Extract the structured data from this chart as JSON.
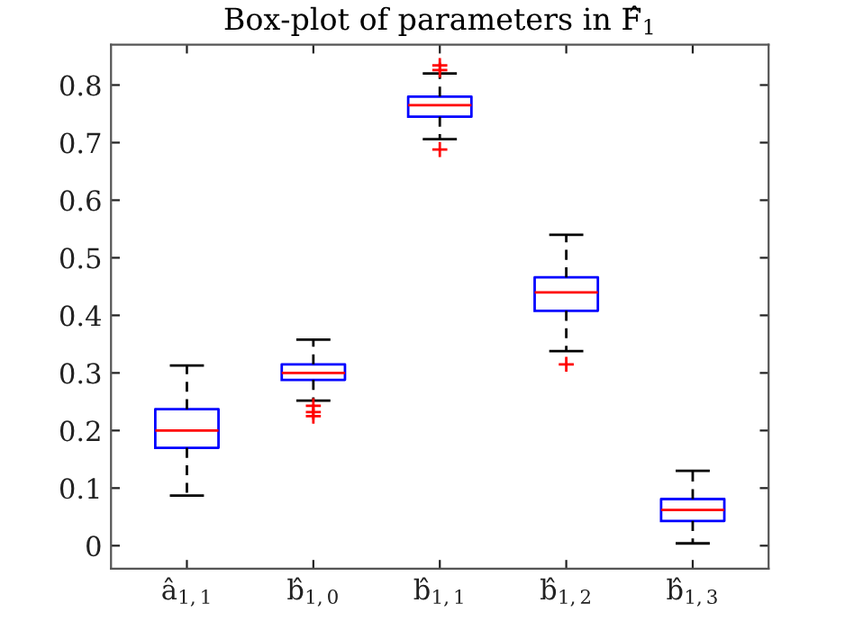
{
  "chart_data": {
    "type": "box",
    "title": "Box-plot of parameters in F̂$_{1}$",
    "categories": [
      "â$_{1,1}$",
      "b̂$_{1,0}$",
      "b̂$_{1,1}$",
      "b̂$_{1,2}$",
      "b̂$_{1,3}$"
    ],
    "boxes": [
      {
        "low": 0.087,
        "q1": 0.17,
        "median": 0.2,
        "q3": 0.237,
        "high": 0.313
      },
      {
        "low": 0.252,
        "q1": 0.288,
        "median": 0.3,
        "q3": 0.315,
        "high": 0.358,
        "outliers": [
          0.243,
          0.232,
          0.225
        ]
      },
      {
        "low": 0.706,
        "q1": 0.745,
        "median": 0.765,
        "q3": 0.78,
        "high": 0.82,
        "outliers": [
          0.826,
          0.834,
          0.688
        ]
      },
      {
        "low": 0.338,
        "q1": 0.408,
        "median": 0.44,
        "q3": 0.466,
        "high": 0.54,
        "outliers": [
          0.315
        ]
      },
      {
        "low": 0.004,
        "q1": 0.043,
        "median": 0.062,
        "q3": 0.081,
        "high": 0.13
      }
    ],
    "color": "#0000ff",
    "ylim": [
      -0.04,
      0.87
    ],
    "yticks": [
      0,
      0.1,
      0.2,
      0.3,
      0.4,
      0.5,
      0.6,
      0.7,
      0.8
    ],
    "marker": "cross",
    "grid": false
  }
}
